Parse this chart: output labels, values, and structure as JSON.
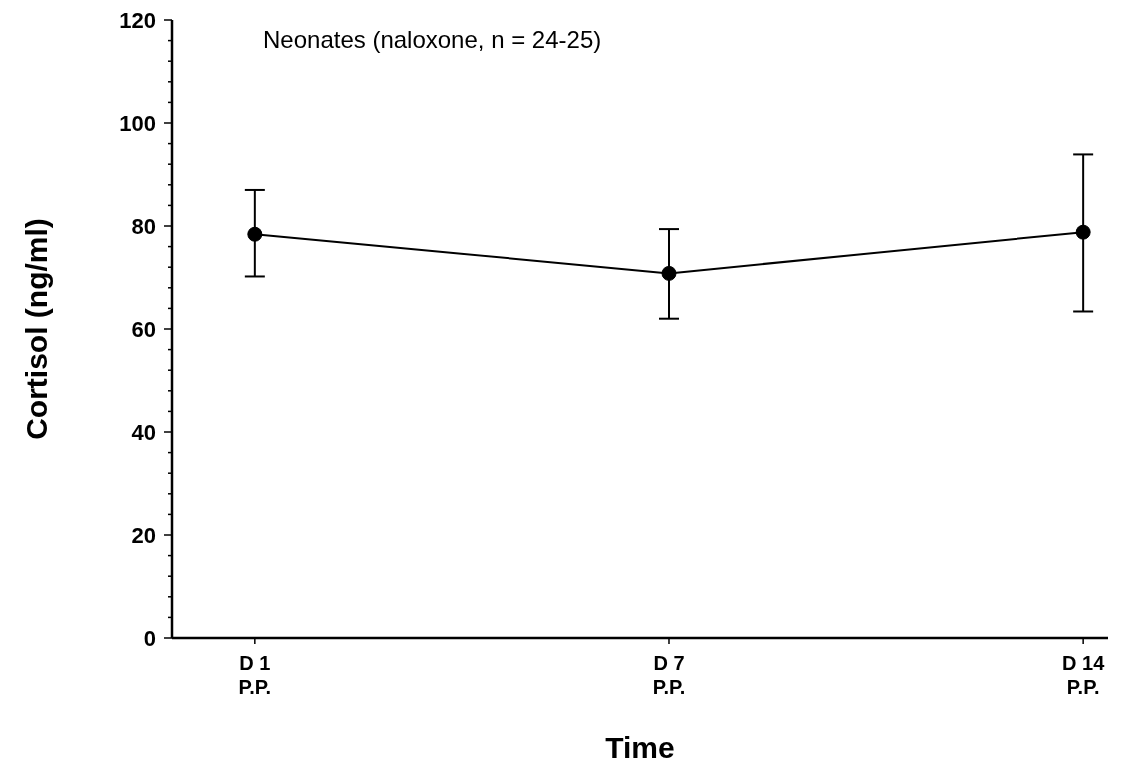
{
  "chart_data": {
    "type": "line",
    "xlabel": "Time",
    "ylabel": "Cortisol (ng/ml)",
    "annotations": [
      "Neonates (naloxone, n = 24-25)"
    ],
    "categories": [
      "D 1\nP.P.",
      "D 7\nP.P.",
      "D 14\nP.P."
    ],
    "series": [
      {
        "color": "#000000",
        "values": [
          78.4,
          70.8,
          78.8
        ],
        "errors": [
          [
            70.2,
            87.0
          ],
          [
            62.0,
            79.4
          ],
          [
            63.4,
            93.9
          ]
        ]
      }
    ],
    "ylim": [
      0,
      120
    ],
    "yticks": [
      0,
      {
        "value": 4,
        "label": null
      },
      {
        "value": 8,
        "label": null
      },
      {
        "value": 12,
        "label": null
      },
      {
        "value": 16,
        "label": null
      },
      20,
      {
        "value": 24,
        "label": null
      },
      {
        "value": 28,
        "label": null
      },
      {
        "value": 32,
        "label": null
      },
      {
        "value": 36,
        "label": null
      },
      40,
      {
        "value": 44,
        "label": null
      },
      {
        "value": 48,
        "label": null
      },
      {
        "value": 52,
        "label": null
      },
      {
        "value": 56,
        "label": null
      },
      60,
      {
        "value": 64,
        "label": null
      },
      {
        "value": 68,
        "label": null
      },
      {
        "value": 72,
        "label": null
      },
      {
        "value": 76,
        "label": null
      },
      80,
      {
        "value": 84,
        "label": null
      },
      {
        "value": 88,
        "label": null
      },
      {
        "value": 92,
        "label": null
      },
      {
        "value": 96,
        "label": null
      },
      100,
      {
        "value": 104,
        "label": null
      },
      {
        "value": 108,
        "label": null
      },
      {
        "value": 112,
        "label": null
      },
      {
        "value": 116,
        "label": null
      },
      120
    ],
    "grid": false,
    "legend": false,
    "marker": "circle",
    "line_style": "solid"
  }
}
